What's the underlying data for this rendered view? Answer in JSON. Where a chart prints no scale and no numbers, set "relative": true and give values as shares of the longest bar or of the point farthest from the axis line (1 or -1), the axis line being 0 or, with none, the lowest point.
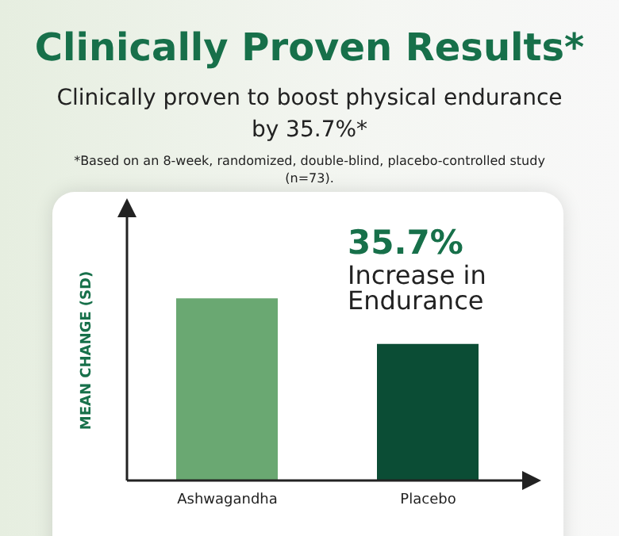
{
  "chart_data": {
    "type": "bar",
    "title": "Clinically Proven Results*",
    "subtitle": "Clinically proven to boost physical endurance by 35.7%*",
    "ylabel": "MEAN CHANGE (SD)",
    "categories": [
      "Ashwagandha",
      "Placebo"
    ],
    "values": [
      1,
      0.75
    ],
    "colors": [
      "#6aa872",
      "#0b4d35"
    ],
    "relative": true,
    "annotations": [
      "35.7%",
      "Increase in Endurance",
      "*Based on an 8-week, randomized, double-blind, placebo-controlled study (n=73)."
    ]
  }
}
